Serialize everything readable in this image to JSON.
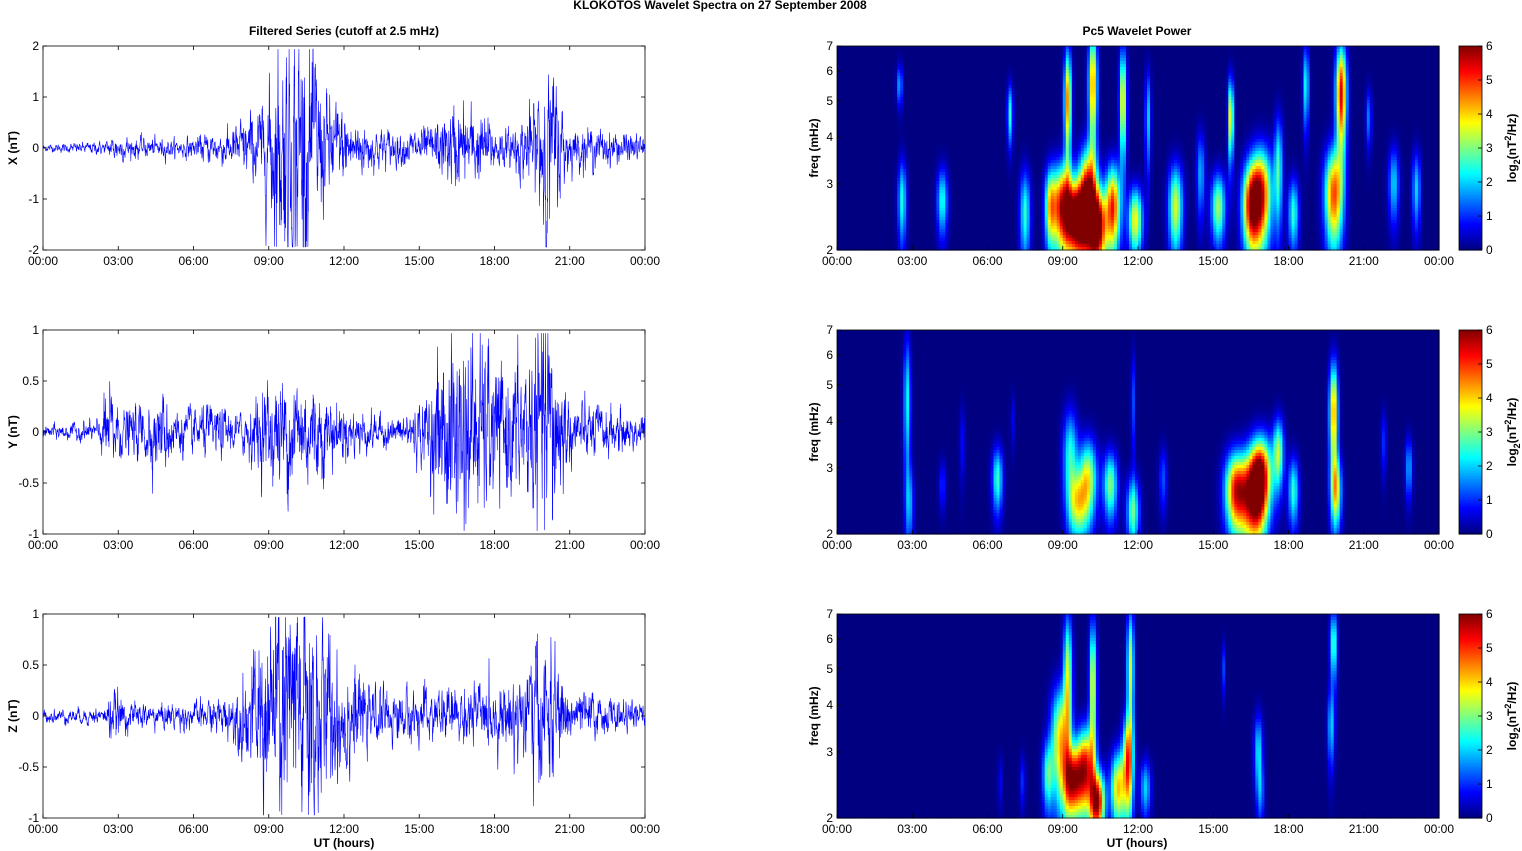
{
  "figure": {
    "suptitle": "KLOKOTOS Wavelet Spectra on 27 September 2008",
    "left_title": "Filtered Series (cutoff at 2.5 mHz)",
    "right_title": "Pc5 Wavelet Power",
    "xlabel": "UT (hours)",
    "wavelet_ylabel": "freq (mHz)",
    "colorbar_label_prefix": "log",
    "colorbar_label_sub": "2",
    "colorbar_label_mid": "(nT",
    "colorbar_label_sup": "2",
    "colorbar_label_suffix": "/Hz)"
  },
  "chart_data": [
    {
      "type": "line",
      "ylabel": "X (nT)",
      "xlim": [
        0,
        24
      ],
      "ylim": [
        -2,
        2
      ],
      "xticks": [
        "00:00",
        "03:00",
        "06:00",
        "09:00",
        "12:00",
        "15:00",
        "18:00",
        "21:00",
        "00:00"
      ],
      "yticks": [
        "-2",
        "-1",
        "0",
        "1",
        "2"
      ],
      "line_color": "#0000ff",
      "amplitude_envelope": [
        [
          0,
          0.03
        ],
        [
          2.5,
          0.06
        ],
        [
          2.8,
          0.12
        ],
        [
          3.5,
          0.1
        ],
        [
          5.5,
          0.08
        ],
        [
          7.5,
          0.18
        ],
        [
          8.8,
          0.4
        ],
        [
          9.2,
          0.9
        ],
        [
          9.8,
          1.1
        ],
        [
          10.3,
          1.2
        ],
        [
          10.8,
          0.9
        ],
        [
          11.3,
          0.5
        ],
        [
          12,
          0.35
        ],
        [
          13,
          0.2
        ],
        [
          14.5,
          0.15
        ],
        [
          15.5,
          0.2
        ],
        [
          16.5,
          0.4
        ],
        [
          17.3,
          0.35
        ],
        [
          18.5,
          0.15
        ],
        [
          19.6,
          0.4
        ],
        [
          20,
          1.0
        ],
        [
          20.3,
          0.7
        ],
        [
          21,
          0.2
        ],
        [
          23,
          0.15
        ],
        [
          24,
          0.1
        ]
      ]
    },
    {
      "type": "line",
      "ylabel": "Y (nT)",
      "xlim": [
        0,
        24
      ],
      "ylim": [
        -1,
        1
      ],
      "xticks": [
        "00:00",
        "03:00",
        "06:00",
        "09:00",
        "12:00",
        "15:00",
        "18:00",
        "21:00",
        "00:00"
      ],
      "yticks": [
        "-1",
        "-0.5",
        "0",
        "0.5",
        "1"
      ],
      "line_color": "#0000ff",
      "amplitude_envelope": [
        [
          0,
          0.03
        ],
        [
          2.2,
          0.05
        ],
        [
          2.6,
          0.22
        ],
        [
          3.2,
          0.1
        ],
        [
          4.8,
          0.18
        ],
        [
          5.5,
          0.1
        ],
        [
          6.8,
          0.12
        ],
        [
          7.8,
          0.08
        ],
        [
          9.2,
          0.25
        ],
        [
          10,
          0.28
        ],
        [
          11,
          0.22
        ],
        [
          12,
          0.12
        ],
        [
          14,
          0.06
        ],
        [
          15.2,
          0.15
        ],
        [
          16.3,
          0.5
        ],
        [
          17.2,
          0.45
        ],
        [
          18.2,
          0.3
        ],
        [
          19.2,
          0.35
        ],
        [
          20.1,
          0.6
        ],
        [
          20.6,
          0.35
        ],
        [
          21,
          0.15
        ],
        [
          23,
          0.1
        ],
        [
          24,
          0.08
        ]
      ]
    },
    {
      "type": "line",
      "ylabel": "Z (nT)",
      "xlim": [
        0,
        24
      ],
      "ylim": [
        -1,
        1
      ],
      "xticks": [
        "00:00",
        "03:00",
        "06:00",
        "09:00",
        "12:00",
        "15:00",
        "18:00",
        "21:00",
        "00:00"
      ],
      "yticks": [
        "-1",
        "-0.5",
        "0",
        "0.5",
        "1"
      ],
      "line_color": "#0000ff",
      "amplitude_envelope": [
        [
          0,
          0.03
        ],
        [
          2.5,
          0.04
        ],
        [
          2.7,
          0.12
        ],
        [
          3.5,
          0.06
        ],
        [
          6,
          0.06
        ],
        [
          7.5,
          0.1
        ],
        [
          8.5,
          0.3
        ],
        [
          9.2,
          0.55
        ],
        [
          10,
          0.6
        ],
        [
          10.6,
          0.65
        ],
        [
          11.2,
          0.4
        ],
        [
          12,
          0.3
        ],
        [
          13,
          0.12
        ],
        [
          15,
          0.12
        ],
        [
          18.5,
          0.15
        ],
        [
          19.8,
          0.35
        ],
        [
          20.3,
          0.3
        ],
        [
          21,
          0.12
        ],
        [
          24,
          0.05
        ]
      ]
    },
    {
      "type": "heatmap",
      "ylabel": "freq (mHz)",
      "xlim": [
        0,
        24
      ],
      "ylim": [
        2,
        7
      ],
      "yscale": "log",
      "xticks": [
        "00:00",
        "03:00",
        "06:00",
        "09:00",
        "12:00",
        "15:00",
        "18:00",
        "21:00",
        "00:00"
      ],
      "yticks": [
        "2",
        "3",
        "4",
        "5",
        "6",
        "7"
      ],
      "colorbar_ticks": [
        "0",
        "1",
        "2",
        "3",
        "4",
        "5",
        "6"
      ],
      "clim": [
        0,
        6
      ],
      "colormap": "jet",
      "blobs": [
        [
          2.6,
          2.7,
          0.12,
          0.5,
          2.4
        ],
        [
          2.5,
          5.5,
          0.08,
          0.5,
          1.8
        ],
        [
          4.2,
          2.7,
          0.15,
          0.4,
          2.4
        ],
        [
          6.9,
          4.6,
          0.08,
          0.6,
          2.5
        ],
        [
          7.5,
          2.5,
          0.15,
          0.5,
          2.5
        ],
        [
          8.5,
          2.6,
          0.15,
          0.45,
          3.2
        ],
        [
          9,
          2.6,
          0.3,
          0.5,
          5.5
        ],
        [
          9.2,
          5,
          0.1,
          1.2,
          4.5
        ],
        [
          9.6,
          2.4,
          0.3,
          0.4,
          6
        ],
        [
          10,
          2.8,
          0.25,
          0.6,
          5.5
        ],
        [
          10.4,
          2.3,
          0.25,
          0.4,
          6
        ],
        [
          10.2,
          5.5,
          0.12,
          1.4,
          4.5
        ],
        [
          11,
          2.6,
          0.2,
          0.5,
          5
        ],
        [
          11.4,
          5,
          0.1,
          1.2,
          4
        ],
        [
          11.9,
          2.4,
          0.2,
          0.35,
          3.8
        ],
        [
          12.4,
          4.5,
          0.08,
          1,
          2
        ],
        [
          13.5,
          2.6,
          0.2,
          0.5,
          3.5
        ],
        [
          14.5,
          3.2,
          0.12,
          0.6,
          1.8
        ],
        [
          15.2,
          2.6,
          0.2,
          0.4,
          3.2
        ],
        [
          15.7,
          4.5,
          0.08,
          0.8,
          4
        ],
        [
          16.5,
          2.6,
          0.25,
          0.5,
          4.5
        ],
        [
          16.9,
          2.8,
          0.3,
          0.6,
          5.2
        ],
        [
          17.6,
          3.3,
          0.12,
          0.8,
          2.5
        ],
        [
          18.2,
          2.5,
          0.15,
          0.4,
          2.5
        ],
        [
          18.7,
          5.5,
          0.08,
          1,
          2.5
        ],
        [
          19.8,
          2.8,
          0.25,
          0.6,
          4.8
        ],
        [
          20.1,
          5.2,
          0.15,
          1.2,
          5.5
        ],
        [
          21.2,
          4.5,
          0.08,
          0.6,
          1.5
        ],
        [
          22.2,
          3,
          0.15,
          0.5,
          2
        ],
        [
          23.1,
          2.9,
          0.12,
          0.5,
          2
        ]
      ]
    },
    {
      "type": "heatmap",
      "ylabel": "freq (mHz)",
      "xlim": [
        0,
        24
      ],
      "ylim": [
        2,
        7
      ],
      "yscale": "log",
      "xticks": [
        "00:00",
        "03:00",
        "06:00",
        "09:00",
        "12:00",
        "15:00",
        "18:00",
        "21:00",
        "00:00"
      ],
      "yticks": [
        "2",
        "3",
        "4",
        "5",
        "6",
        "7"
      ],
      "colorbar_ticks": [
        "0",
        "1",
        "2",
        "3",
        "4",
        "5",
        "6"
      ],
      "clim": [
        0,
        6
      ],
      "colormap": "jet",
      "blobs": [
        [
          2.8,
          4.5,
          0.1,
          1.4,
          2.3
        ],
        [
          2.9,
          2.4,
          0.12,
          0.4,
          1.5
        ],
        [
          4.2,
          2.7,
          0.1,
          0.3,
          1
        ],
        [
          5,
          3.5,
          0.08,
          0.6,
          0.8
        ],
        [
          6.4,
          2.8,
          0.15,
          0.4,
          2.6
        ],
        [
          7,
          4,
          0.06,
          0.5,
          0.7
        ],
        [
          9.3,
          3.2,
          0.2,
          0.7,
          2.5
        ],
        [
          9.6,
          2.4,
          0.25,
          0.35,
          3
        ],
        [
          10,
          2.8,
          0.25,
          0.5,
          3.6
        ],
        [
          10.9,
          2.7,
          0.2,
          0.4,
          3
        ],
        [
          11.8,
          2.3,
          0.18,
          0.35,
          2.8
        ],
        [
          11.8,
          4.5,
          0.06,
          1,
          1.2
        ],
        [
          13,
          2.8,
          0.12,
          0.4,
          1.2
        ],
        [
          15.9,
          2.6,
          0.3,
          0.45,
          5
        ],
        [
          16.6,
          2.5,
          0.35,
          0.5,
          5.2
        ],
        [
          16.9,
          2.9,
          0.3,
          0.5,
          4.8
        ],
        [
          17.6,
          3.3,
          0.15,
          0.5,
          3.2
        ],
        [
          18.2,
          2.6,
          0.15,
          0.4,
          2.5
        ],
        [
          19.8,
          4.2,
          0.12,
          1,
          4.5
        ],
        [
          19.9,
          2.6,
          0.15,
          0.4,
          3.5
        ],
        [
          21.8,
          3.5,
          0.08,
          0.5,
          1
        ],
        [
          22.8,
          3,
          0.1,
          0.4,
          1.8
        ]
      ]
    },
    {
      "type": "heatmap",
      "ylabel": "freq (mHz)",
      "xlim": [
        0,
        24
      ],
      "ylim": [
        2,
        7
      ],
      "yscale": "log",
      "xticks": [
        "00:00",
        "03:00",
        "06:00",
        "09:00",
        "12:00",
        "15:00",
        "18:00",
        "21:00",
        "00:00"
      ],
      "yticks": [
        "2",
        "3",
        "4",
        "5",
        "6",
        "7"
      ],
      "colorbar_ticks": [
        "0",
        "1",
        "2",
        "3",
        "4",
        "5",
        "6"
      ],
      "clim": [
        0,
        6
      ],
      "colormap": "jet",
      "blobs": [
        [
          6.5,
          2.5,
          0.06,
          0.3,
          0.8
        ],
        [
          7.4,
          2.5,
          0.08,
          0.3,
          1
        ],
        [
          8.4,
          2.6,
          0.15,
          0.4,
          2.5
        ],
        [
          8.9,
          3.2,
          0.25,
          0.8,
          4
        ],
        [
          9.2,
          4.8,
          0.12,
          1.4,
          3.5
        ],
        [
          9.4,
          2.5,
          0.25,
          0.4,
          5
        ],
        [
          9.9,
          2.7,
          0.25,
          0.5,
          5.2
        ],
        [
          10.2,
          4.5,
          0.1,
          1.4,
          3.8
        ],
        [
          10.4,
          2.2,
          0.2,
          0.3,
          5.5
        ],
        [
          11.2,
          2.4,
          0.2,
          0.4,
          4
        ],
        [
          11.6,
          2.8,
          0.15,
          0.6,
          4.5
        ],
        [
          11.7,
          5,
          0.1,
          1.4,
          3.5
        ],
        [
          12.3,
          2.4,
          0.15,
          0.3,
          2
        ],
        [
          15.4,
          5,
          0.05,
          0.6,
          1.2
        ],
        [
          16.8,
          3,
          0.12,
          0.5,
          2.2
        ],
        [
          16.9,
          2.3,
          0.1,
          0.3,
          1.2
        ],
        [
          19.7,
          3.5,
          0.1,
          0.6,
          2
        ],
        [
          19.8,
          5.8,
          0.1,
          0.9,
          2.8
        ]
      ]
    }
  ]
}
